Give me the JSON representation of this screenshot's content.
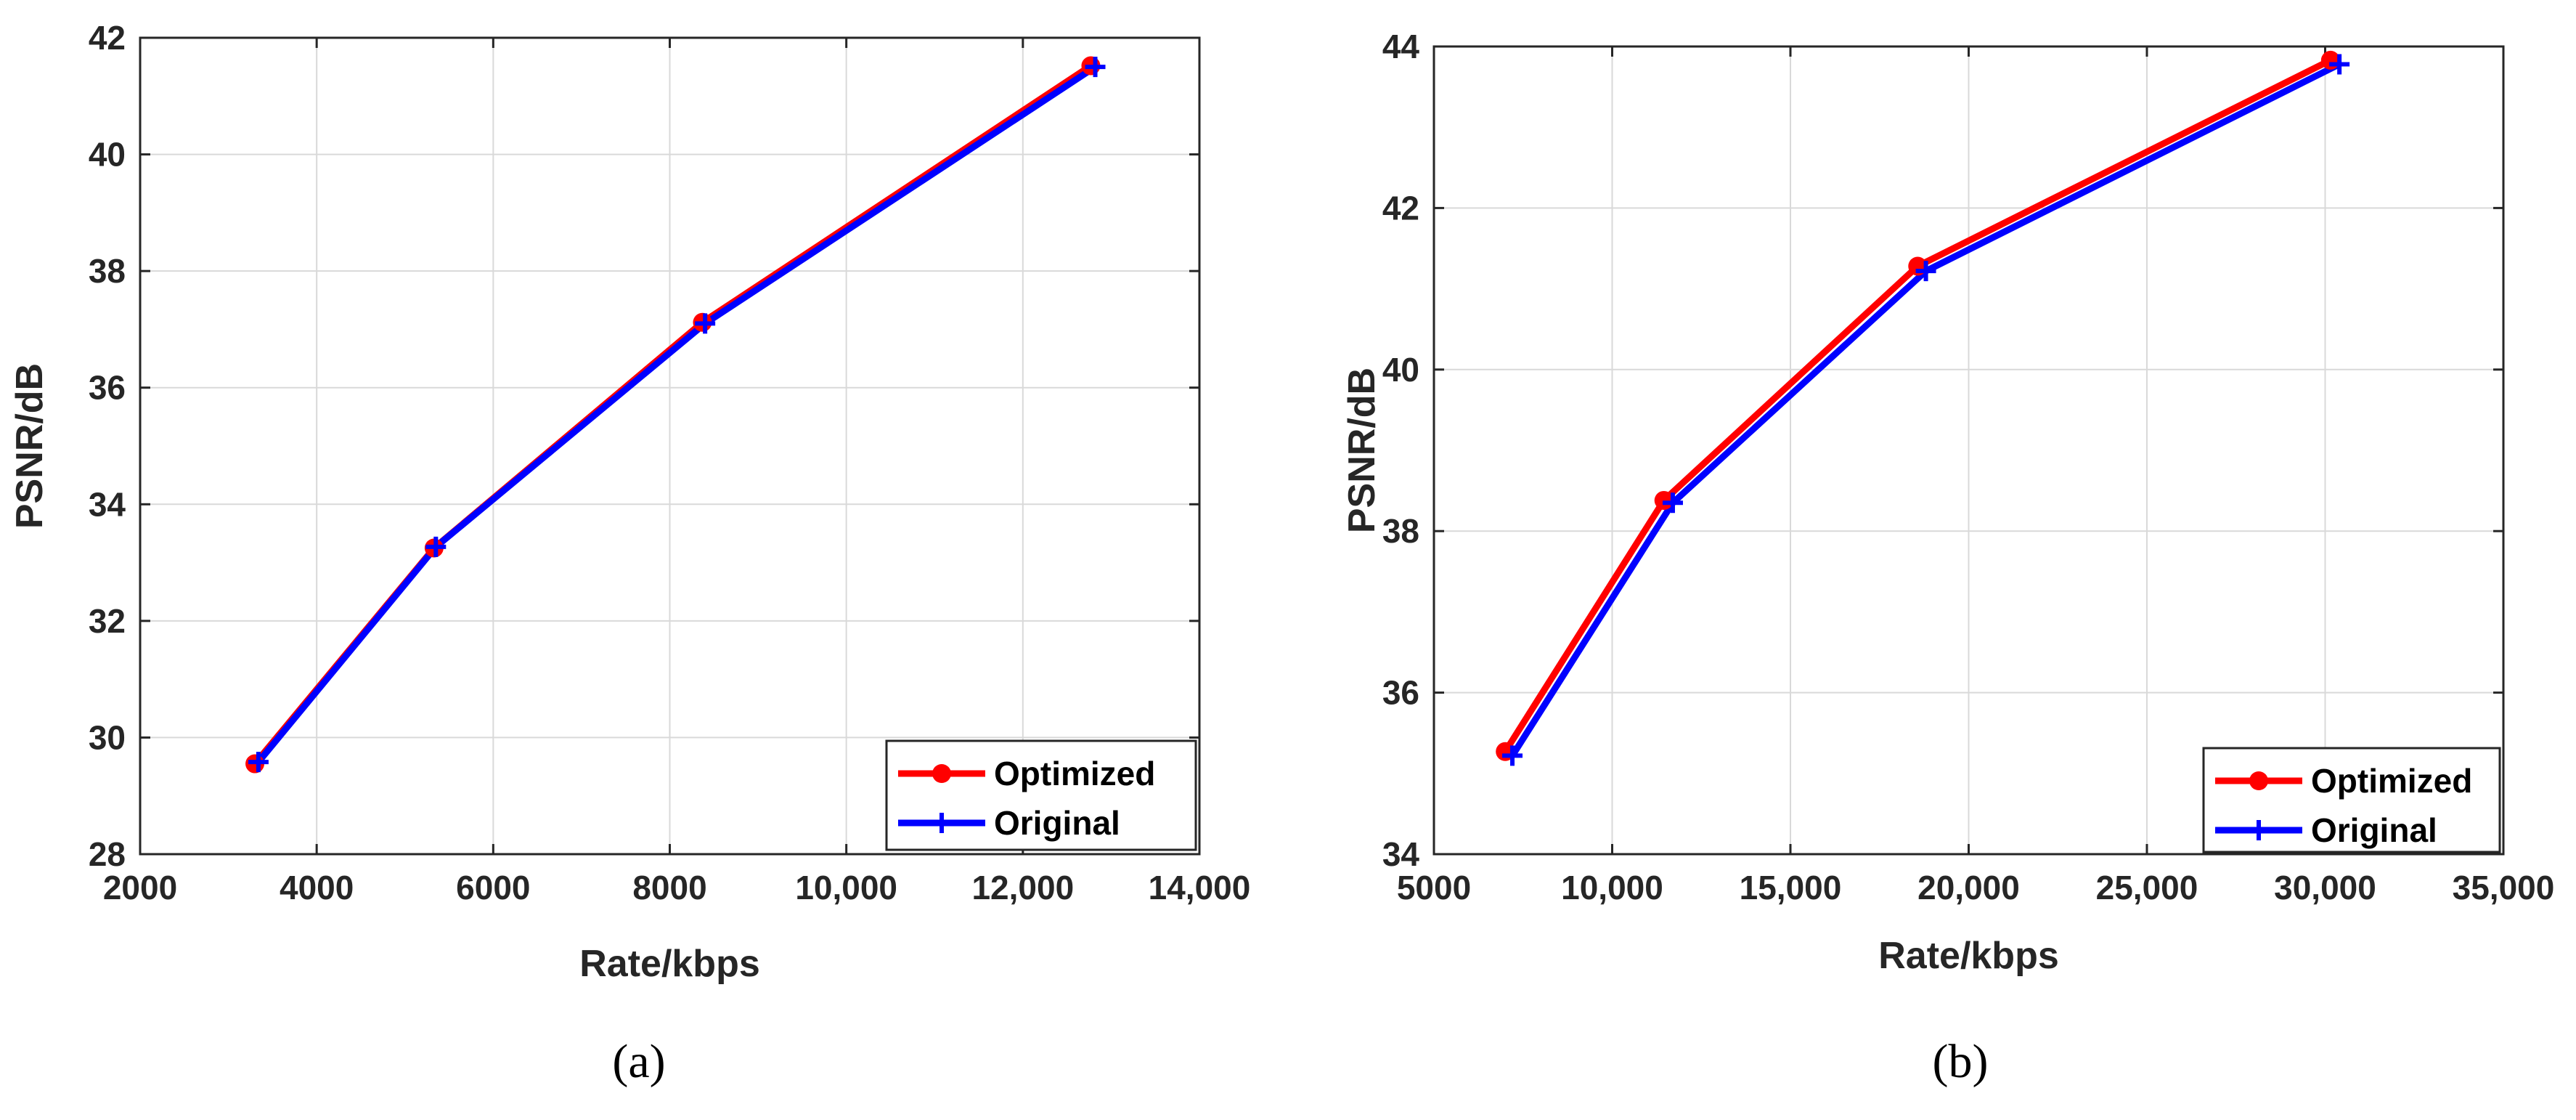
{
  "colors": {
    "optimized": "#ff0000",
    "original": "#0000ff"
  },
  "marker_names": {
    "optimized": "filled-circle",
    "original": "plus"
  },
  "chart_data": [
    {
      "type": "line",
      "caption": "(a)",
      "xlabel": "Rate/kbps",
      "ylabel": "PSNR/dB",
      "xlim": [
        2000,
        14000
      ],
      "ylim": [
        28,
        42
      ],
      "xticks": [
        2000,
        4000,
        6000,
        8000,
        10000,
        12000,
        14000
      ],
      "xtick_labels": [
        "2000",
        "4000",
        "6000",
        "8000",
        "10,000",
        "12,000",
        "14,000"
      ],
      "yticks": [
        28,
        30,
        32,
        34,
        36,
        38,
        40,
        42
      ],
      "ytick_labels": [
        "28",
        "30",
        "32",
        "34",
        "36",
        "38",
        "40",
        "42"
      ],
      "grid": true,
      "legend_position": "bottom-right",
      "series": [
        {
          "name": "Optimized",
          "x": [
            3300,
            5330,
            8370,
            12770
          ],
          "y": [
            29.55,
            33.25,
            37.12,
            41.52
          ]
        },
        {
          "name": "Original",
          "x": [
            3340,
            5350,
            8400,
            12820
          ],
          "y": [
            29.58,
            33.27,
            37.1,
            41.5
          ]
        }
      ]
    },
    {
      "type": "line",
      "caption": "(b)",
      "xlabel": "Rate/kbps",
      "ylabel": "PSNR/dB",
      "xlim": [
        5000,
        35000
      ],
      "ylim": [
        34,
        44
      ],
      "xticks": [
        5000,
        10000,
        15000,
        20000,
        25000,
        30000,
        35000
      ],
      "xtick_labels": [
        "5000",
        "10,000",
        "15,000",
        "20,000",
        "25,000",
        "30,000",
        "35,000"
      ],
      "yticks": [
        34,
        36,
        38,
        40,
        42,
        44
      ],
      "ytick_labels": [
        "34",
        "36",
        "38",
        "40",
        "42",
        "44"
      ],
      "grid": true,
      "legend_position": "bottom-right",
      "series": [
        {
          "name": "Optimized",
          "x": [
            7000,
            11450,
            18570,
            30150
          ],
          "y": [
            35.27,
            38.38,
            41.28,
            43.83
          ]
        },
        {
          "name": "Original",
          "x": [
            7200,
            11700,
            18800,
            30400
          ],
          "y": [
            35.22,
            38.35,
            41.22,
            43.78
          ]
        }
      ]
    }
  ]
}
